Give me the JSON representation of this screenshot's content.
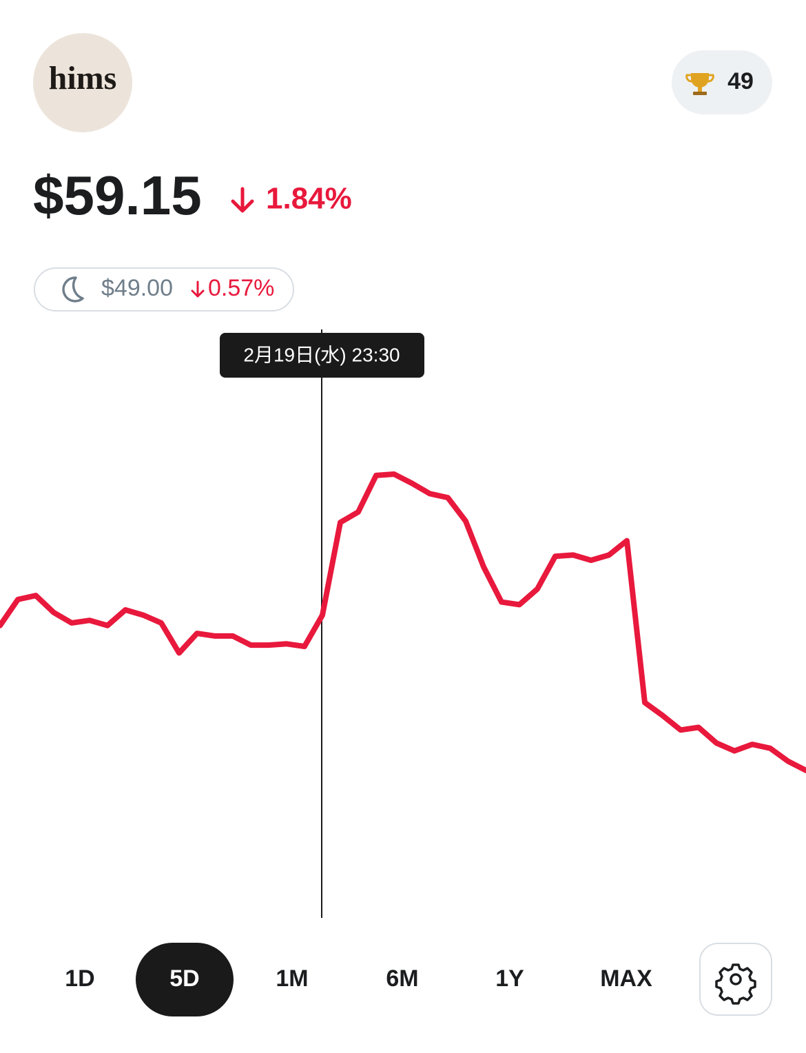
{
  "header": {
    "logo": "hims",
    "score": "49"
  },
  "price": {
    "value": "$59.15",
    "change": "1.84%"
  },
  "after_hours": {
    "price": "$49.00",
    "change": "0.57%"
  },
  "tooltip": "2月19日(水) 23:30",
  "chart_data": {
    "type": "line",
    "color": "#e8193c",
    "values": [
      60.26,
      60.46,
      60.49,
      60.36,
      60.28,
      60.3,
      60.26,
      60.38,
      60.34,
      60.28,
      60.05,
      60.2,
      60.18,
      60.18,
      60.11,
      60.11,
      60.12,
      60.1,
      60.34,
      61.05,
      61.13,
      61.41,
      61.42,
      61.35,
      61.27,
      61.24,
      61.06,
      60.71,
      60.44,
      60.42,
      60.54,
      60.79,
      60.8,
      60.76,
      60.8,
      60.91,
      59.67,
      59.57,
      59.46,
      59.48,
      59.36,
      59.3,
      59.35,
      59.32,
      59.22,
      59.15
    ]
  },
  "ranges": [
    "1D",
    "5D",
    "1M",
    "6M",
    "1Y",
    "MAX"
  ],
  "selected_index": 1
}
